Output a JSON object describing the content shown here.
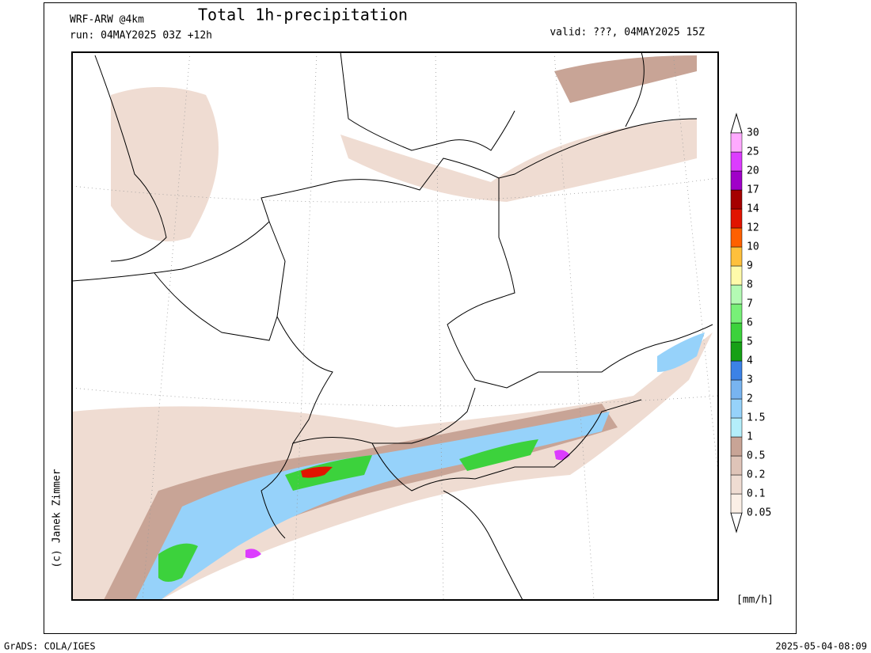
{
  "header": {
    "model": "WRF-ARW @4km",
    "title": "Total 1h-precipitation",
    "run": "run: 04MAY2025 03Z +12h",
    "valid": "valid: ???, 04MAY2025 15Z"
  },
  "copyright": "(c) Janek Zimmer",
  "colorbar": {
    "unit": "[mm/h]",
    "levels": [
      0.05,
      0.1,
      0.2,
      0.5,
      1,
      1.5,
      2,
      3,
      4,
      5,
      6,
      7,
      8,
      9,
      10,
      12,
      14,
      17,
      20,
      25,
      30
    ],
    "colors": [
      "#fbefe6",
      "#efdcd2",
      "#dfc4b8",
      "#c8a496",
      "#b4eefa",
      "#96d2fa",
      "#78b4f0",
      "#3c82e6",
      "#16a016",
      "#3cd23c",
      "#78f078",
      "#b4fab4",
      "#fffaaa",
      "#ffc03c",
      "#ff6000",
      "#e11400",
      "#a50000",
      "#a000c8",
      "#dc3cff",
      "#ffaaff"
    ]
  },
  "footer": {
    "left": "GrADS: COLA/IGES",
    "right": "2025-05-04-08:09"
  }
}
